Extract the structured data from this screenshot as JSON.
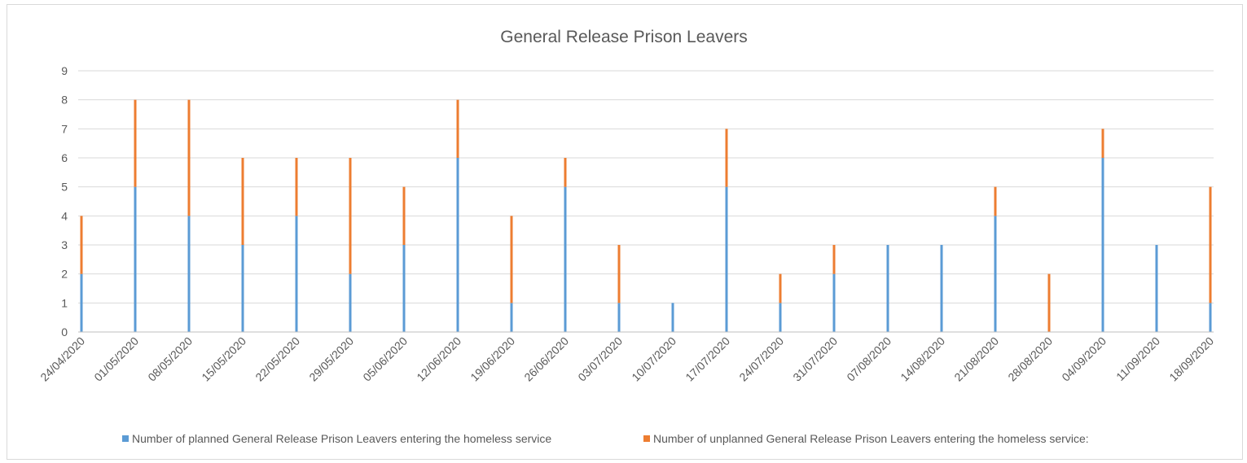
{
  "chart_data": {
    "type": "bar",
    "stacked": true,
    "title": "General Release Prison Leavers",
    "xlabel": "",
    "ylabel": "",
    "ylim": [
      0,
      9
    ],
    "yticks": [
      "0",
      "1",
      "2",
      "3",
      "4",
      "5",
      "6",
      "7",
      "8",
      "9"
    ],
    "grid": true,
    "legend_position": "bottom",
    "categories": [
      "24/04/2020",
      "01/05/2020",
      "08/05/2020",
      "15/05/2020",
      "22/05/2020",
      "29/05/2020",
      "05/06/2020",
      "12/06/2020",
      "19/06/2020",
      "26/06/2020",
      "03/07/2020",
      "10/07/2020",
      "17/07/2020",
      "24/07/2020",
      "31/07/2020",
      "07/08/2020",
      "14/08/2020",
      "21/08/2020",
      "28/08/2020",
      "04/09/2020",
      "11/09/2020",
      "18/09/2020"
    ],
    "series": [
      {
        "name": "Number of planned General Release Prison Leavers entering the homeless service",
        "color": "#5b9bd5",
        "values": [
          2,
          5,
          4,
          3,
          4,
          2,
          3,
          6,
          1,
          5,
          1,
          1,
          5,
          1,
          2,
          3,
          3,
          4,
          0,
          6,
          3,
          1
        ]
      },
      {
        "name": "Number of unplanned General Release Prison Leavers entering the homeless service:",
        "color": "#ed7d31",
        "values": [
          2,
          3,
          4,
          3,
          2,
          4,
          2,
          2,
          3,
          1,
          2,
          0,
          2,
          1,
          1,
          0,
          0,
          1,
          2,
          1,
          0,
          4
        ]
      }
    ]
  }
}
